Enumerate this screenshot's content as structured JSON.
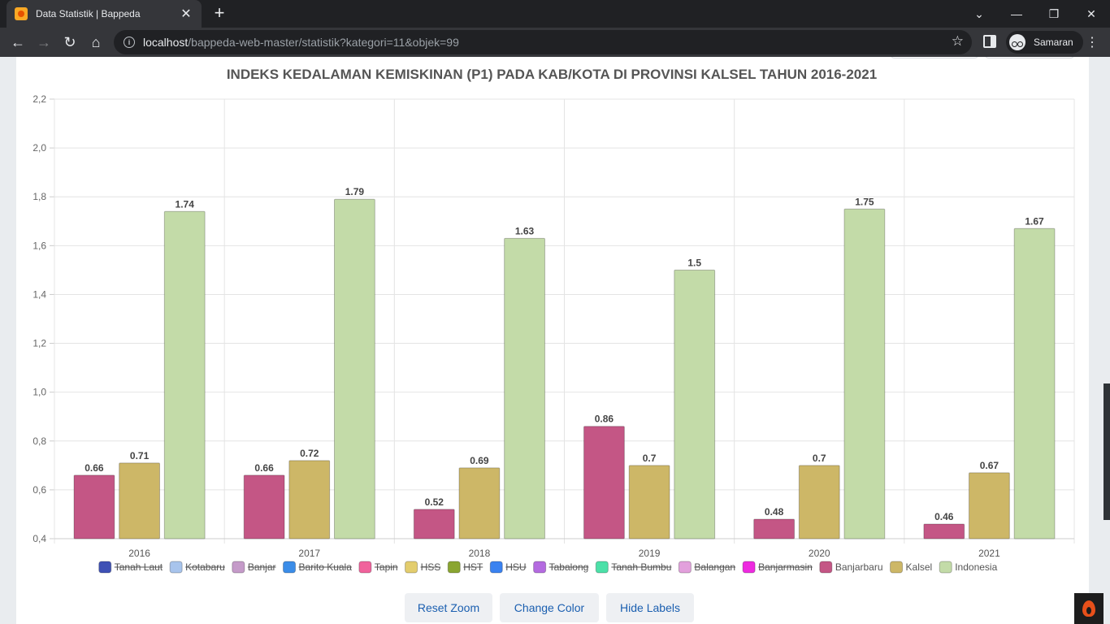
{
  "browser": {
    "tab_title": "Data Statistik | Bappeda",
    "url_host": "localhost",
    "url_path": "/bappeda-web-master/statistik?kategori=11&objek=99",
    "profile_name": "Samaran"
  },
  "buttons": {
    "reset_zoom": "Reset Zoom",
    "change_color": "Change Color",
    "hide_labels": "Hide Labels"
  },
  "chart_data": {
    "type": "bar",
    "title": "INDEKS KEDALAMAN KEMISKINAN (P1) PADA KAB/KOTA DI PROVINSI KALSEL TAHUN 2016-2021",
    "categories": [
      "2016",
      "2017",
      "2018",
      "2019",
      "2020",
      "2021"
    ],
    "ylim": [
      0.4,
      2.2
    ],
    "yticks": [
      "0,4",
      "0,6",
      "0,8",
      "1,0",
      "1,2",
      "1,4",
      "1,6",
      "1,8",
      "2,0",
      "2,2"
    ],
    "ytick_values": [
      0.4,
      0.6,
      0.8,
      1.0,
      1.2,
      1.4,
      1.6,
      1.8,
      2.0,
      2.2
    ],
    "grid": true,
    "legend_position": "bottom",
    "legend": [
      {
        "name": "Tanah Laut",
        "color": "#3f51b5",
        "hidden": true
      },
      {
        "name": "Kotabaru",
        "color": "#a8c4ec",
        "hidden": true
      },
      {
        "name": "Banjar",
        "color": "#c59bc9",
        "hidden": true
      },
      {
        "name": "Barito Kuala",
        "color": "#3b8de8",
        "hidden": true
      },
      {
        "name": "Tapin",
        "color": "#f0639c",
        "hidden": true
      },
      {
        "name": "HSS",
        "color": "#e3cd6e",
        "hidden": true
      },
      {
        "name": "HST",
        "color": "#8aa531",
        "hidden": true
      },
      {
        "name": "HSU",
        "color": "#3a82f0",
        "hidden": true
      },
      {
        "name": "Tabalong",
        "color": "#b46be0",
        "hidden": true
      },
      {
        "name": "Tanah Bumbu",
        "color": "#4ce0a8",
        "hidden": true
      },
      {
        "name": "Balangan",
        "color": "#e2a0dc",
        "hidden": true
      },
      {
        "name": "Banjarmasin",
        "color": "#ee2be0",
        "hidden": true
      },
      {
        "name": "Banjarbaru",
        "color": "#c45685",
        "hidden": false
      },
      {
        "name": "Kalsel",
        "color": "#cdb767",
        "hidden": false
      },
      {
        "name": "Indonesia",
        "color": "#c3dba8",
        "hidden": false
      }
    ],
    "series": [
      {
        "name": "Banjarbaru",
        "color": "#c45685",
        "values": [
          0.66,
          0.66,
          0.52,
          0.86,
          0.48,
          0.46
        ],
        "labels": [
          "0.66",
          "0.66",
          "0.52",
          "0.86",
          "0.48",
          "0.46"
        ]
      },
      {
        "name": "Kalsel",
        "color": "#cdb767",
        "values": [
          0.71,
          0.72,
          0.69,
          0.7,
          0.7,
          0.67
        ],
        "labels": [
          "0.71",
          "0.72",
          "0.69",
          "0.7",
          "0.7",
          "0.67"
        ]
      },
      {
        "name": "Indonesia",
        "color": "#c3dba8",
        "values": [
          1.74,
          1.79,
          1.63,
          1.5,
          1.75,
          1.67
        ],
        "labels": [
          "1.74",
          "1.79",
          "1.63",
          "1.5",
          "1.75",
          "1.67"
        ]
      }
    ]
  }
}
